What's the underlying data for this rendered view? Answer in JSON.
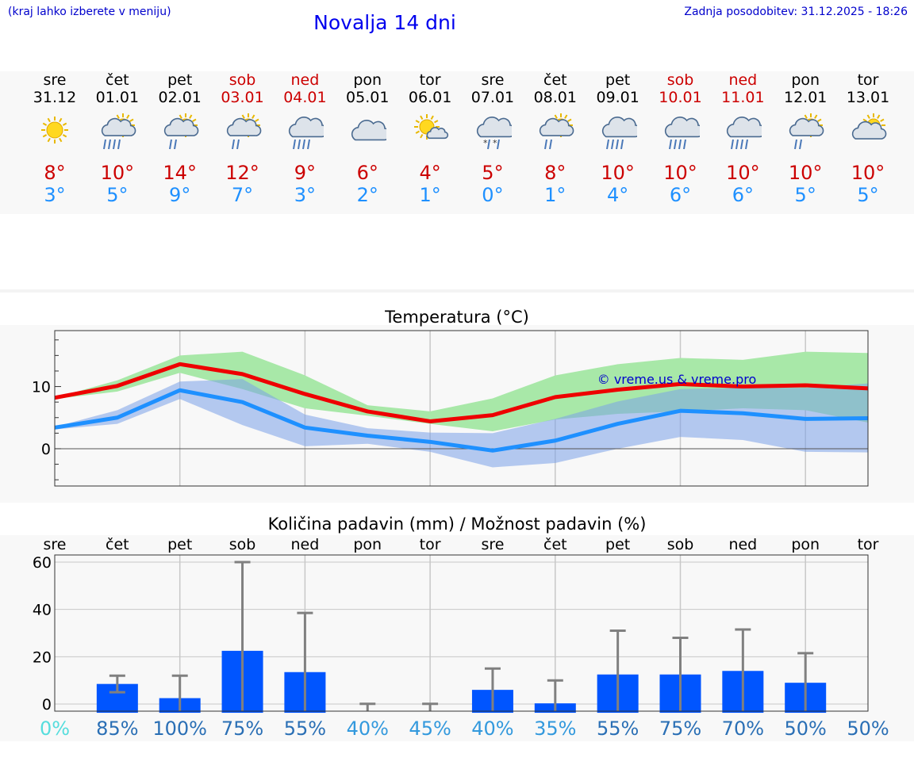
{
  "header": {
    "hint": "(kraj lahko izberete v meniju)",
    "title": "Novalja 14 dni",
    "updated": "Zadnja posodobitev: 31.12.2025 - 18:26"
  },
  "days": [
    {
      "name": "sre",
      "date": "31.12",
      "weekend": false,
      "icon": "sunny-icon",
      "tmax": "8°",
      "tmin": "3°"
    },
    {
      "name": "čet",
      "date": "01.01",
      "weekend": false,
      "icon": "sun-cloud-rain-icon",
      "tmax": "10°",
      "tmin": "5°"
    },
    {
      "name": "pet",
      "date": "02.01",
      "weekend": false,
      "icon": "sun-cloud-light-rain-icon",
      "tmax": "14°",
      "tmin": "9°"
    },
    {
      "name": "sob",
      "date": "03.01",
      "weekend": true,
      "icon": "sun-cloud-light-rain-icon",
      "tmax": "12°",
      "tmin": "7°"
    },
    {
      "name": "ned",
      "date": "04.01",
      "weekend": true,
      "icon": "cloud-rain-icon",
      "tmax": "9°",
      "tmin": "3°"
    },
    {
      "name": "pon",
      "date": "05.01",
      "weekend": false,
      "icon": "cloudy-icon",
      "tmax": "6°",
      "tmin": "2°"
    },
    {
      "name": "tor",
      "date": "06.01",
      "weekend": false,
      "icon": "sun-small-cloud-icon",
      "tmax": "4°",
      "tmin": "1°"
    },
    {
      "name": "sre",
      "date": "07.01",
      "weekend": false,
      "icon": "cloud-sleet-icon",
      "tmax": "5°",
      "tmin": "0°"
    },
    {
      "name": "čet",
      "date": "08.01",
      "weekend": false,
      "icon": "sun-cloud-light-rain-icon",
      "tmax": "8°",
      "tmin": "1°"
    },
    {
      "name": "pet",
      "date": "09.01",
      "weekend": false,
      "icon": "cloud-rain-icon",
      "tmax": "10°",
      "tmin": "4°"
    },
    {
      "name": "sob",
      "date": "10.01",
      "weekend": true,
      "icon": "cloud-rain-icon",
      "tmax": "10°",
      "tmin": "6°"
    },
    {
      "name": "ned",
      "date": "11.01",
      "weekend": true,
      "icon": "cloud-rain-icon",
      "tmax": "10°",
      "tmin": "6°"
    },
    {
      "name": "pon",
      "date": "12.01",
      "weekend": false,
      "icon": "sun-cloud-light-rain-icon",
      "tmax": "10°",
      "tmin": "5°"
    },
    {
      "name": "tor",
      "date": "13.01",
      "weekend": false,
      "icon": "sun-cloud-icon",
      "tmax": "10°",
      "tmin": "5°"
    }
  ],
  "colors": {
    "max_line": "#ee0000",
    "min_line": "#1e90ff",
    "max_band": "#a8e8a8",
    "min_band": "#a8c0f0",
    "overlap_band": "#80c0a8",
    "bar": "#0055ff",
    "errbar": "#808080",
    "grid": "#c8c8c8"
  },
  "chart_data": [
    {
      "type": "line",
      "title": "Temperatura (°C)",
      "watermark": "© vreme.us & vreme.pro",
      "x": [
        0,
        1,
        2,
        3,
        4,
        5,
        6,
        7,
        8,
        9,
        10,
        11,
        12,
        13
      ],
      "ylim": [
        -6,
        19
      ],
      "yticks": [
        0,
        10
      ],
      "series": [
        {
          "name": "max",
          "values": [
            8.2,
            10.1,
            13.6,
            12.0,
            8.8,
            6.0,
            4.4,
            5.4,
            8.3,
            9.5,
            10.4,
            10.0,
            10.2,
            9.7
          ],
          "band_low": [
            8.0,
            9.2,
            12.2,
            9.6,
            6.5,
            5.3,
            4.0,
            2.8,
            4.7,
            5.6,
            6.0,
            6.5,
            6.2,
            4.2
          ],
          "band_high": [
            8.2,
            11.0,
            15.0,
            15.6,
            11.8,
            7.0,
            6.0,
            8.1,
            11.8,
            13.6,
            14.6,
            14.3,
            15.6,
            15.4
          ]
        },
        {
          "name": "min",
          "values": [
            3.4,
            5.0,
            9.4,
            7.5,
            3.4,
            2.1,
            1.1,
            -0.3,
            1.3,
            4.0,
            6.1,
            5.7,
            4.8,
            4.9
          ],
          "band_low": [
            3.1,
            4.0,
            8.0,
            3.8,
            0.4,
            0.8,
            -0.5,
            -3.0,
            -2.3,
            0.0,
            1.9,
            1.4,
            -0.5,
            -0.6
          ],
          "band_high": [
            3.5,
            6.2,
            10.8,
            11.2,
            5.5,
            3.3,
            2.6,
            2.5,
            4.8,
            7.6,
            9.6,
            9.8,
            9.8,
            10.5
          ]
        }
      ]
    },
    {
      "type": "bar",
      "title": "Količina padavin (mm) / Možnost padavin (%)",
      "categories": [
        "sre",
        "čet",
        "pet",
        "sob",
        "ned",
        "pon",
        "tor",
        "sre",
        "čet",
        "pet",
        "sob",
        "ned",
        "pon",
        "tor"
      ],
      "values": [
        0,
        8.5,
        2.5,
        22.5,
        13.5,
        0,
        0,
        6,
        0.3,
        12.5,
        12.5,
        14,
        9,
        0
      ],
      "err_low": [
        0,
        5,
        0,
        0,
        0,
        0,
        0,
        0,
        0,
        0,
        0,
        0,
        0,
        0
      ],
      "err_high": [
        0,
        12,
        12,
        60,
        38.5,
        0.1,
        0.1,
        15,
        10,
        31,
        28,
        31.5,
        21.5,
        0
      ],
      "ylim": [
        -3,
        63
      ],
      "yticks": [
        0,
        20,
        40,
        60
      ],
      "probability": [
        "0%",
        "85%",
        "100%",
        "75%",
        "55%",
        "40%",
        "45%",
        "40%",
        "35%",
        "55%",
        "75%",
        "70%",
        "50%",
        "50%"
      ],
      "probability_colors": [
        "#55dddd",
        "#2a6fb5",
        "#2a6fb5",
        "#2a6fb5",
        "#2a6fb5",
        "#3399dd",
        "#3399dd",
        "#3399dd",
        "#3399dd",
        "#2a6fb5",
        "#2a6fb5",
        "#2a6fb5",
        "#2a6fb5",
        "#2a6fb5"
      ]
    }
  ]
}
